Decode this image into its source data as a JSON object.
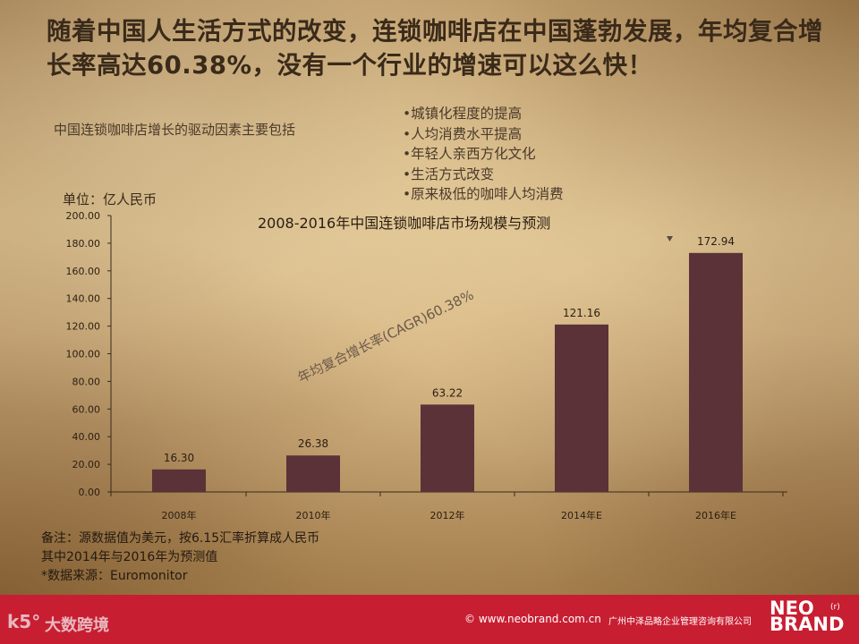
{
  "headline": "随着中国人生活方式的改变，连锁咖啡店在中国蓬勃发展，年均复合增长率高达60.38%，没有一个行业的增速可以这么快！",
  "subtitle": "中国连锁咖啡店增长的驱动因素主要包括",
  "drivers": [
    "•城镇化程度的提高",
    "•人均消费水平提高",
    "•年轻人亲西方化文化",
    "•生活方式改变",
    "•原来极低的咖啡人均消费"
  ],
  "notes": [
    "备注：源数据值为美元，按6.15汇率折算成人民币",
    "其中2014年与2016年为预测值",
    "*数据来源：Euromonitor"
  ],
  "footer": {
    "logo_mark": "k5°",
    "brand_cn": "大数跨境",
    "copyright": "© www.neobrand.com.cn",
    "company": "广州中泽品略企业管理咨询有限公司",
    "neo_line1": "NEO",
    "neo_line2": "BRAND",
    "tm": "(r)"
  },
  "colors": {
    "bar": "#5a3238",
    "footer_bg": "#c81e32",
    "axis": "#3a2a1a"
  },
  "chart_data": {
    "type": "bar",
    "title": "2008-2016年中国连锁咖啡店市场规模与预测",
    "unit_label": "单位：亿人民币",
    "categories": [
      "2008年",
      "2010年",
      "2012年",
      "2014年E",
      "2016年E"
    ],
    "values": [
      16.3,
      26.38,
      63.22,
      121.16,
      172.94
    ],
    "data_labels": [
      "16.30",
      "26.38",
      "63.22",
      "121.16",
      "172.94"
    ],
    "ylim": [
      0,
      200
    ],
    "yticks": [
      "0.00",
      "20.00",
      "40.00",
      "60.00",
      "80.00",
      "100.00",
      "120.00",
      "140.00",
      "160.00",
      "180.00",
      "200.00"
    ],
    "annotation": "年均复合增长率(CAGR)60.38%",
    "grid": false,
    "legend": "none"
  }
}
